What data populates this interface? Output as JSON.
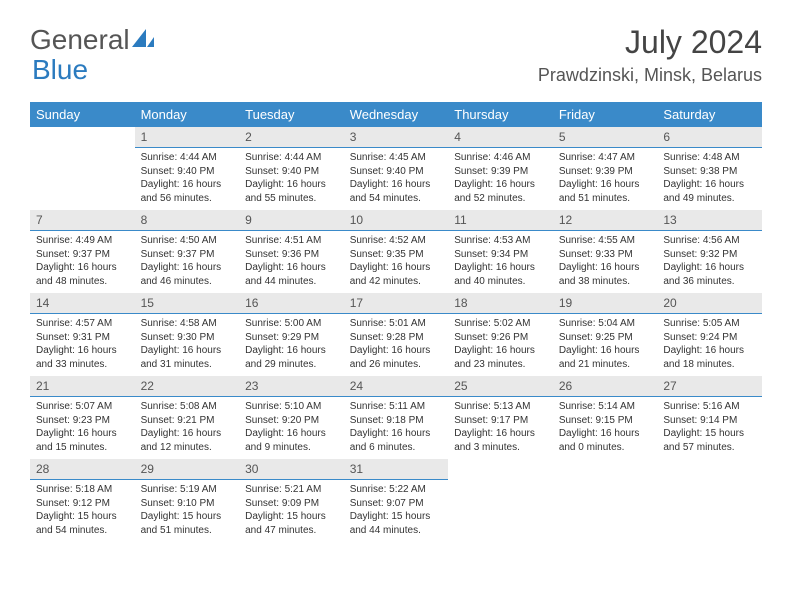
{
  "logo": {
    "part1": "General",
    "part2": "Blue"
  },
  "title": "July 2024",
  "location": "Prawdzinski, Minsk, Belarus",
  "colors": {
    "header_bg": "#3a8ac9",
    "daynum_bg": "#e9e9e9",
    "row_divider": "#3a8ac9",
    "text": "#333333",
    "logo_blue": "#2b7bbf"
  },
  "weekdays": [
    "Sunday",
    "Monday",
    "Tuesday",
    "Wednesday",
    "Thursday",
    "Friday",
    "Saturday"
  ],
  "weeks": [
    [
      {
        "n": "",
        "sr": "",
        "ss": "",
        "dl": ""
      },
      {
        "n": "1",
        "sr": "Sunrise: 4:44 AM",
        "ss": "Sunset: 9:40 PM",
        "dl": "Daylight: 16 hours and 56 minutes."
      },
      {
        "n": "2",
        "sr": "Sunrise: 4:44 AM",
        "ss": "Sunset: 9:40 PM",
        "dl": "Daylight: 16 hours and 55 minutes."
      },
      {
        "n": "3",
        "sr": "Sunrise: 4:45 AM",
        "ss": "Sunset: 9:40 PM",
        "dl": "Daylight: 16 hours and 54 minutes."
      },
      {
        "n": "4",
        "sr": "Sunrise: 4:46 AM",
        "ss": "Sunset: 9:39 PM",
        "dl": "Daylight: 16 hours and 52 minutes."
      },
      {
        "n": "5",
        "sr": "Sunrise: 4:47 AM",
        "ss": "Sunset: 9:39 PM",
        "dl": "Daylight: 16 hours and 51 minutes."
      },
      {
        "n": "6",
        "sr": "Sunrise: 4:48 AM",
        "ss": "Sunset: 9:38 PM",
        "dl": "Daylight: 16 hours and 49 minutes."
      }
    ],
    [
      {
        "n": "7",
        "sr": "Sunrise: 4:49 AM",
        "ss": "Sunset: 9:37 PM",
        "dl": "Daylight: 16 hours and 48 minutes."
      },
      {
        "n": "8",
        "sr": "Sunrise: 4:50 AM",
        "ss": "Sunset: 9:37 PM",
        "dl": "Daylight: 16 hours and 46 minutes."
      },
      {
        "n": "9",
        "sr": "Sunrise: 4:51 AM",
        "ss": "Sunset: 9:36 PM",
        "dl": "Daylight: 16 hours and 44 minutes."
      },
      {
        "n": "10",
        "sr": "Sunrise: 4:52 AM",
        "ss": "Sunset: 9:35 PM",
        "dl": "Daylight: 16 hours and 42 minutes."
      },
      {
        "n": "11",
        "sr": "Sunrise: 4:53 AM",
        "ss": "Sunset: 9:34 PM",
        "dl": "Daylight: 16 hours and 40 minutes."
      },
      {
        "n": "12",
        "sr": "Sunrise: 4:55 AM",
        "ss": "Sunset: 9:33 PM",
        "dl": "Daylight: 16 hours and 38 minutes."
      },
      {
        "n": "13",
        "sr": "Sunrise: 4:56 AM",
        "ss": "Sunset: 9:32 PM",
        "dl": "Daylight: 16 hours and 36 minutes."
      }
    ],
    [
      {
        "n": "14",
        "sr": "Sunrise: 4:57 AM",
        "ss": "Sunset: 9:31 PM",
        "dl": "Daylight: 16 hours and 33 minutes."
      },
      {
        "n": "15",
        "sr": "Sunrise: 4:58 AM",
        "ss": "Sunset: 9:30 PM",
        "dl": "Daylight: 16 hours and 31 minutes."
      },
      {
        "n": "16",
        "sr": "Sunrise: 5:00 AM",
        "ss": "Sunset: 9:29 PM",
        "dl": "Daylight: 16 hours and 29 minutes."
      },
      {
        "n": "17",
        "sr": "Sunrise: 5:01 AM",
        "ss": "Sunset: 9:28 PM",
        "dl": "Daylight: 16 hours and 26 minutes."
      },
      {
        "n": "18",
        "sr": "Sunrise: 5:02 AM",
        "ss": "Sunset: 9:26 PM",
        "dl": "Daylight: 16 hours and 23 minutes."
      },
      {
        "n": "19",
        "sr": "Sunrise: 5:04 AM",
        "ss": "Sunset: 9:25 PM",
        "dl": "Daylight: 16 hours and 21 minutes."
      },
      {
        "n": "20",
        "sr": "Sunrise: 5:05 AM",
        "ss": "Sunset: 9:24 PM",
        "dl": "Daylight: 16 hours and 18 minutes."
      }
    ],
    [
      {
        "n": "21",
        "sr": "Sunrise: 5:07 AM",
        "ss": "Sunset: 9:23 PM",
        "dl": "Daylight: 16 hours and 15 minutes."
      },
      {
        "n": "22",
        "sr": "Sunrise: 5:08 AM",
        "ss": "Sunset: 9:21 PM",
        "dl": "Daylight: 16 hours and 12 minutes."
      },
      {
        "n": "23",
        "sr": "Sunrise: 5:10 AM",
        "ss": "Sunset: 9:20 PM",
        "dl": "Daylight: 16 hours and 9 minutes."
      },
      {
        "n": "24",
        "sr": "Sunrise: 5:11 AM",
        "ss": "Sunset: 9:18 PM",
        "dl": "Daylight: 16 hours and 6 minutes."
      },
      {
        "n": "25",
        "sr": "Sunrise: 5:13 AM",
        "ss": "Sunset: 9:17 PM",
        "dl": "Daylight: 16 hours and 3 minutes."
      },
      {
        "n": "26",
        "sr": "Sunrise: 5:14 AM",
        "ss": "Sunset: 9:15 PM",
        "dl": "Daylight: 16 hours and 0 minutes."
      },
      {
        "n": "27",
        "sr": "Sunrise: 5:16 AM",
        "ss": "Sunset: 9:14 PM",
        "dl": "Daylight: 15 hours and 57 minutes."
      }
    ],
    [
      {
        "n": "28",
        "sr": "Sunrise: 5:18 AM",
        "ss": "Sunset: 9:12 PM",
        "dl": "Daylight: 15 hours and 54 minutes."
      },
      {
        "n": "29",
        "sr": "Sunrise: 5:19 AM",
        "ss": "Sunset: 9:10 PM",
        "dl": "Daylight: 15 hours and 51 minutes."
      },
      {
        "n": "30",
        "sr": "Sunrise: 5:21 AM",
        "ss": "Sunset: 9:09 PM",
        "dl": "Daylight: 15 hours and 47 minutes."
      },
      {
        "n": "31",
        "sr": "Sunrise: 5:22 AM",
        "ss": "Sunset: 9:07 PM",
        "dl": "Daylight: 15 hours and 44 minutes."
      },
      {
        "n": "",
        "sr": "",
        "ss": "",
        "dl": ""
      },
      {
        "n": "",
        "sr": "",
        "ss": "",
        "dl": ""
      },
      {
        "n": "",
        "sr": "",
        "ss": "",
        "dl": ""
      }
    ]
  ]
}
